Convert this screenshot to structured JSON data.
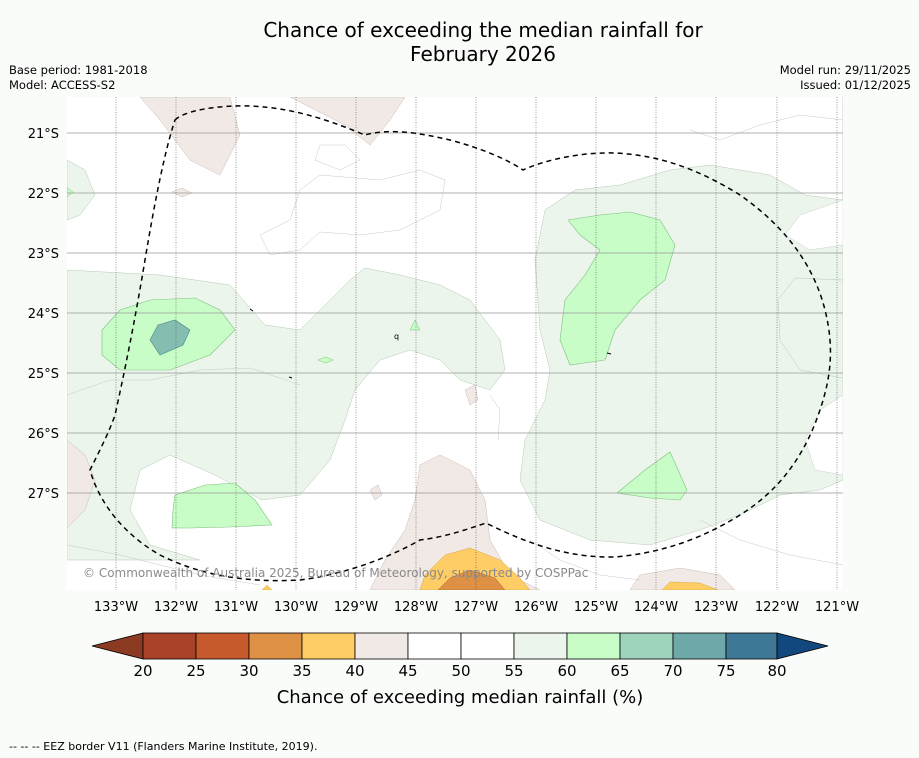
{
  "title": {
    "line1": "Chance of exceeding the median rainfall for",
    "line2": "February 2026"
  },
  "meta": {
    "base_period": "Base period: 1981-2018",
    "model": "Model: ACCESS-S2",
    "model_run": "Model run: 29/11/2025",
    "issued": "Issued: 01/12/2025"
  },
  "map": {
    "lat_labels": [
      "21°S",
      "22°S",
      "23°S",
      "24°S",
      "25°S",
      "26°S",
      "27°S"
    ],
    "lon_labels": [
      "133°W",
      "132°W",
      "131°W",
      "130°W",
      "129°W",
      "128°W",
      "127°W",
      "126°W",
      "125°W",
      "124°W",
      "123°W",
      "122°W",
      "121°W"
    ],
    "copyright": "© Commonwealth of Australia 2025, Bureau of Meteorology, supported by COSPPac",
    "stray_label": "q"
  },
  "legend": {
    "ticks": [
      "20",
      "25",
      "30",
      "35",
      "40",
      "45",
      "50",
      "55",
      "60",
      "65",
      "70",
      "75",
      "80"
    ],
    "colors": [
      "#a8432a",
      "#c75a2c",
      "#de9145",
      "#fecd66",
      "#f0e9e6",
      "#ffffff",
      "#ffffff",
      "#ebf5eb",
      "#c8fdc8",
      "#9ed3bc",
      "#6ea8a8",
      "#3f7797"
    ],
    "under_color": "#8c3a22",
    "over_color": "#12487e",
    "label": "Chance of exceeding median rainfall (%)"
  },
  "footer": {
    "eez_note": "--  --  -- EEZ border V11 (Flanders Marine Institute, 2019)."
  }
}
